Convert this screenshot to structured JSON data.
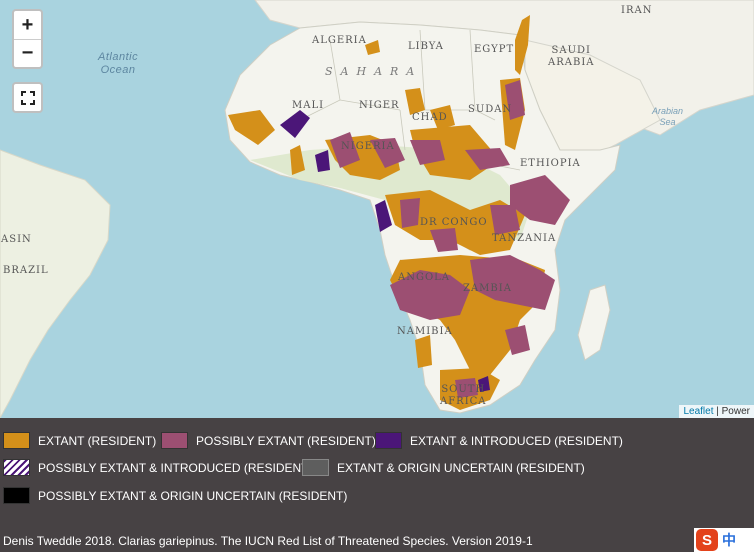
{
  "map": {
    "zoom_in": "+",
    "zoom_out": "−",
    "labels": {
      "atlantic": "Atlantic\nOcean",
      "arabian": "Arabian\nSea",
      "iran": "IRAN",
      "algeria": "ALGERIA",
      "libya": "LIBYA",
      "egypt": "EGYPT",
      "saudi": "SAUDI\nARABIA",
      "sahara": "SAHARA",
      "mali": "MALI",
      "niger": "NIGER",
      "chad": "CHAD",
      "sudan": "SUDAN",
      "nigeria": "NIGERIA",
      "ethiopia": "ETHIOPIA",
      "drcongo": "DR CONGO",
      "tanzania": "TANZANIA",
      "brasin": "ASIN",
      "brazil": "BRAZIL",
      "angola": "ANGOLA",
      "zambia": "ZAMBIA",
      "namibia": "NAMIBIA",
      "southafrica": "SOUTH\nAFRICA"
    },
    "attribution_link": "Leaflet",
    "attribution_sep": " | ",
    "attribution_rest": "Power"
  },
  "legend": {
    "items": [
      {
        "label": "EXTANT (RESIDENT)",
        "color": "#d4901a"
      },
      {
        "label": "POSSIBLY EXTANT (RESIDENT)",
        "color": "#9c4f72"
      },
      {
        "label": "EXTANT & INTRODUCED (RESIDENT)",
        "color": "#4b1678"
      },
      {
        "label": "POSSIBLY EXTANT & INTRODUCED (RESIDENT)",
        "color": "#4b1678"
      },
      {
        "label": "EXTANT & ORIGIN UNCERTAIN (RESIDENT)",
        "color": "#5e5e5e"
      },
      {
        "label": "POSSIBLY EXTANT & ORIGIN UNCERTAIN (RESIDENT)",
        "color": "#000000"
      }
    ],
    "citation": "Denis Tweddle 2018. Clarias gariepinus. The IUCN Red List of Threatened Species. Version 2019-1"
  },
  "sogou": {
    "logo": "S",
    "zh": "中"
  },
  "colors": {
    "extant": "#d4901a",
    "possibly_extant": "#9c4f72",
    "introduced": "#4b1678",
    "land": "#f4f4ee",
    "ocean": "#a9d3df"
  }
}
